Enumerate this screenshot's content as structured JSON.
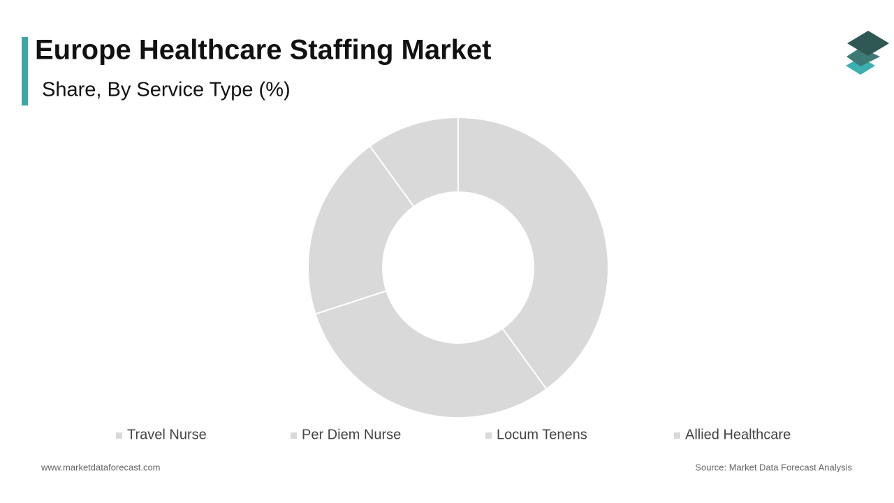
{
  "chart_data": {
    "type": "donut",
    "title": "Europe Healthcare Staffing Market",
    "subtitle": "Share, By Service Type (%)",
    "categories": [
      "Travel Nurse",
      "Per Diem Nurse",
      "Locum Tenens",
      "Allied Healthcare"
    ],
    "values": [
      40,
      30,
      20,
      10
    ],
    "colors": [
      "#d9d9d9",
      "#d9d9d9",
      "#d9d9d9",
      "#d9d9d9"
    ]
  },
  "footer": {
    "website": "www.marketdataforecast.com",
    "source": "Source: Market Data Forecast Analysis"
  }
}
